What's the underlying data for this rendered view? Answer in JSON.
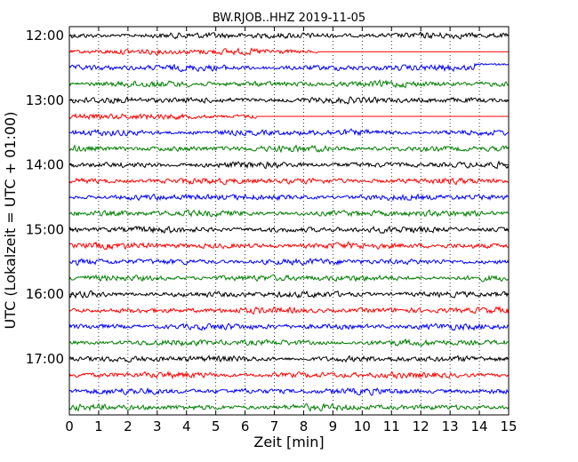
{
  "chart_data": {
    "type": "line",
    "title": "BW.RJOB..HHZ 2019-11-05",
    "xlabel": "Zeit  [min]",
    "ylabel": "UTC (Lokalzeit = UTC + 01:00)",
    "xlim": [
      0,
      15
    ],
    "x_ticks": [
      "0",
      "1",
      "2",
      "3",
      "4",
      "5",
      "6",
      "7",
      "8",
      "9",
      "10",
      "11",
      "12",
      "13",
      "14",
      "15"
    ],
    "y_ticks": [
      "12:00",
      "13:00",
      "14:00",
      "15:00",
      "16:00",
      "17:00"
    ],
    "grid": "vertical dotted lines at each minute",
    "trace_interval_min": 15,
    "color_cycle": [
      "#000000",
      "#ff0000",
      "#0000ff",
      "#007f00"
    ],
    "series": [
      {
        "start": "12:00",
        "color": "#000000",
        "data_end_min": 15
      },
      {
        "start": "12:15",
        "color": "#ff0000",
        "data_end_min": 8.5
      },
      {
        "start": "12:30",
        "color": "#0000ff",
        "data_end_min": 15,
        "event": {
          "at_min": 13.8,
          "offset_after": 0.06
        }
      },
      {
        "start": "12:45",
        "color": "#007f00",
        "data_end_min": 15
      },
      {
        "start": "13:00",
        "color": "#000000",
        "data_end_min": 15
      },
      {
        "start": "13:15",
        "color": "#ff0000",
        "data_end_min": 6.4
      },
      {
        "start": "13:30",
        "color": "#0000ff",
        "data_end_min": 15,
        "event": {
          "at_min": 15.0,
          "offset_after": 0.06
        }
      },
      {
        "start": "13:45",
        "color": "#007f00",
        "data_end_min": 15
      },
      {
        "start": "14:00",
        "color": "#000000",
        "data_end_min": 15
      },
      {
        "start": "14:15",
        "color": "#ff0000",
        "data_end_min": 15
      },
      {
        "start": "14:30",
        "color": "#0000ff",
        "data_end_min": 15
      },
      {
        "start": "14:45",
        "color": "#007f00",
        "data_end_min": 15
      },
      {
        "start": "15:00",
        "color": "#000000",
        "data_end_min": 15
      },
      {
        "start": "15:15",
        "color": "#ff0000",
        "data_end_min": 15
      },
      {
        "start": "15:30",
        "color": "#0000ff",
        "data_end_min": 15
      },
      {
        "start": "15:45",
        "color": "#007f00",
        "data_end_min": 15
      },
      {
        "start": "16:00",
        "color": "#000000",
        "data_end_min": 15
      },
      {
        "start": "16:15",
        "color": "#ff0000",
        "data_end_min": 15
      },
      {
        "start": "16:30",
        "color": "#0000ff",
        "data_end_min": 15
      },
      {
        "start": "16:45",
        "color": "#007f00",
        "data_end_min": 15
      },
      {
        "start": "17:00",
        "color": "#000000",
        "data_end_min": 15
      },
      {
        "start": "17:15",
        "color": "#ff0000",
        "data_end_min": 15
      },
      {
        "start": "17:30",
        "color": "#0000ff",
        "data_end_min": 15
      },
      {
        "start": "17:45",
        "color": "#007f00",
        "data_end_min": 15
      }
    ]
  }
}
